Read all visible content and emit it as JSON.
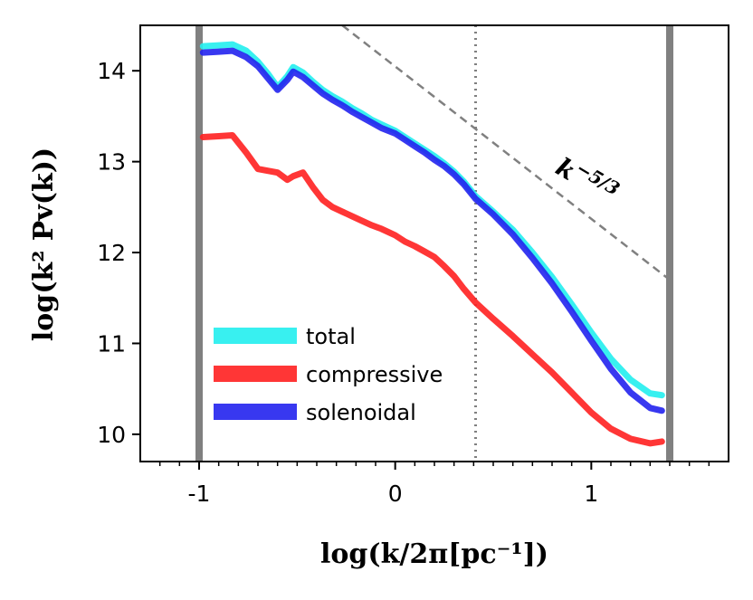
{
  "chart_data": {
    "type": "line",
    "xlabel": "log(k/2π[pc⁻¹])",
    "ylabel": "log(k² Pv(k))",
    "xlim": [
      -1.3,
      1.7
    ],
    "ylim": [
      9.7,
      14.5
    ],
    "x_ticks": [
      -1,
      0,
      1
    ],
    "x_tick_labels": [
      "-1",
      "0",
      "1"
    ],
    "y_ticks": [
      10,
      11,
      12,
      13,
      14
    ],
    "y_tick_labels": [
      "10",
      "11",
      "12",
      "13",
      "14"
    ],
    "grid": false,
    "legend_position": "lower-left",
    "vertical_lines": [
      {
        "x": -1.0,
        "style": "solid",
        "color": "#808080"
      },
      {
        "x": 1.4,
        "style": "solid",
        "color": "#808080"
      },
      {
        "x": 0.41,
        "style": "dotted",
        "color": "#808080"
      }
    ],
    "reference_line": {
      "label": "k",
      "exponent": "−5/3",
      "x": [
        -0.27,
        1.4
      ],
      "y": [
        14.5,
        11.7
      ],
      "color": "#808080"
    },
    "series": [
      {
        "name": "total",
        "color": "#22eeee",
        "x": [
          -0.98,
          -0.9,
          -0.83,
          -0.76,
          -0.7,
          -0.65,
          -0.6,
          -0.55,
          -0.52,
          -0.47,
          -0.42,
          -0.37,
          -0.32,
          -0.27,
          -0.22,
          -0.17,
          -0.12,
          -0.07,
          0.0,
          0.05,
          0.1,
          0.15,
          0.2,
          0.25,
          0.3,
          0.35,
          0.41,
          0.5,
          0.6,
          0.7,
          0.8,
          0.9,
          1.0,
          1.1,
          1.2,
          1.3,
          1.36
        ],
        "values": [
          14.27,
          14.28,
          14.29,
          14.22,
          14.1,
          13.97,
          13.82,
          13.94,
          14.04,
          13.98,
          13.88,
          13.79,
          13.72,
          13.66,
          13.59,
          13.53,
          13.46,
          13.41,
          13.34,
          13.27,
          13.2,
          13.13,
          13.06,
          12.98,
          12.89,
          12.78,
          12.62,
          12.45,
          12.25,
          12.0,
          11.73,
          11.43,
          11.12,
          10.83,
          10.6,
          10.45,
          10.43
        ]
      },
      {
        "name": "compressive",
        "color": "#ff2020",
        "x": [
          -0.98,
          -0.9,
          -0.83,
          -0.76,
          -0.7,
          -0.65,
          -0.6,
          -0.55,
          -0.52,
          -0.47,
          -0.42,
          -0.37,
          -0.32,
          -0.27,
          -0.22,
          -0.17,
          -0.12,
          -0.07,
          0.0,
          0.05,
          0.1,
          0.15,
          0.2,
          0.25,
          0.3,
          0.35,
          0.41,
          0.5,
          0.6,
          0.7,
          0.8,
          0.9,
          1.0,
          1.1,
          1.2,
          1.3,
          1.36
        ],
        "values": [
          13.27,
          13.28,
          13.29,
          13.1,
          12.92,
          12.9,
          12.88,
          12.8,
          12.84,
          12.88,
          12.72,
          12.58,
          12.5,
          12.45,
          12.4,
          12.35,
          12.3,
          12.26,
          12.19,
          12.12,
          12.07,
          12.01,
          11.95,
          11.85,
          11.74,
          11.6,
          11.45,
          11.27,
          11.08,
          10.88,
          10.68,
          10.46,
          10.24,
          10.06,
          9.95,
          9.9,
          9.92
        ]
      },
      {
        "name": "solenoidal",
        "color": "#2222ee",
        "x": [
          -0.98,
          -0.9,
          -0.83,
          -0.76,
          -0.7,
          -0.65,
          -0.6,
          -0.55,
          -0.52,
          -0.47,
          -0.42,
          -0.37,
          -0.32,
          -0.27,
          -0.22,
          -0.17,
          -0.12,
          -0.07,
          0.0,
          0.05,
          0.1,
          0.15,
          0.2,
          0.25,
          0.3,
          0.35,
          0.41,
          0.5,
          0.6,
          0.7,
          0.8,
          0.9,
          1.0,
          1.1,
          1.2,
          1.3,
          1.36
        ],
        "values": [
          14.2,
          14.21,
          14.22,
          14.15,
          14.05,
          13.92,
          13.79,
          13.9,
          13.99,
          13.93,
          13.84,
          13.75,
          13.68,
          13.62,
          13.55,
          13.49,
          13.43,
          13.37,
          13.31,
          13.24,
          13.17,
          13.1,
          13.02,
          12.95,
          12.86,
          12.75,
          12.59,
          12.42,
          12.2,
          11.94,
          11.66,
          11.35,
          11.03,
          10.72,
          10.46,
          10.29,
          10.26
        ]
      }
    ]
  }
}
